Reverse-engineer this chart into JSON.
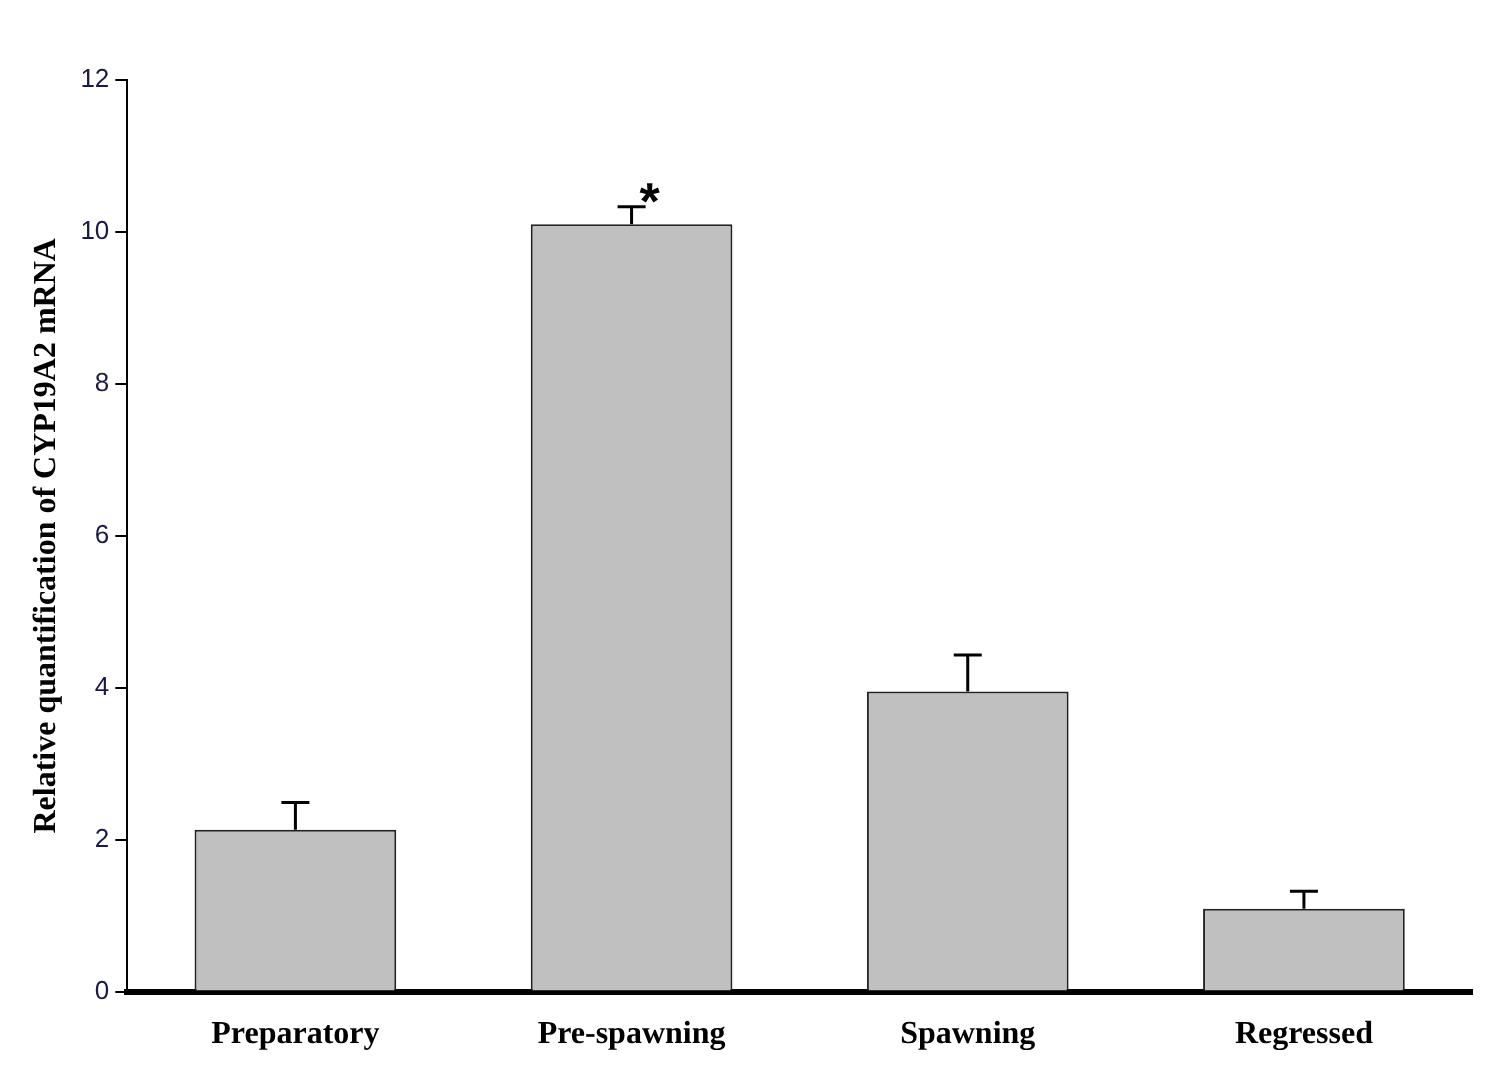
{
  "chart_data": {
    "type": "bar",
    "ylabel": "Relative quantification of CYP19A2 mRNA",
    "categories": [
      "Preparatory",
      "Pre-spawning",
      "Spawning",
      "Regressed"
    ],
    "values": [
      2.13,
      10.1,
      3.95,
      1.09
    ],
    "color": "#c0c0c0",
    "errors": [
      [
        2.13,
        2.49
      ],
      [
        10.1,
        10.33
      ],
      [
        3.95,
        4.43
      ],
      [
        1.09,
        1.32
      ]
    ],
    "annotations": [
      {
        "text": "*",
        "x": "Pre-spawning",
        "y": 10.33
      }
    ],
    "ylim": [
      0,
      12
    ],
    "yticks": [
      0,
      2,
      4,
      6,
      8,
      10,
      12
    ],
    "grid": false,
    "legend": false
  }
}
